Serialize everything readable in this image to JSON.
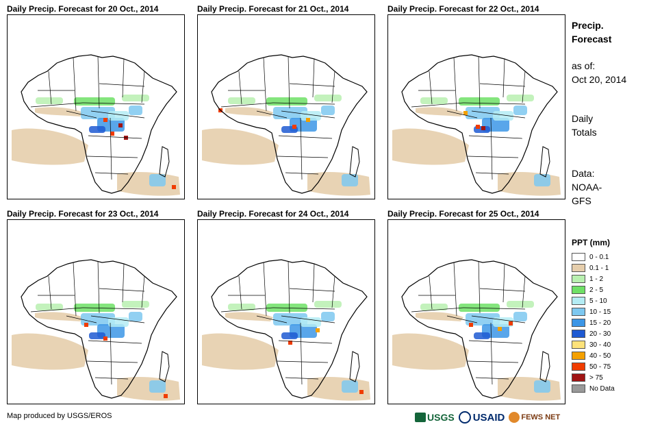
{
  "panels": [
    {
      "title": "Daily Precip. Forecast for 20 Oct., 2014"
    },
    {
      "title": "Daily Precip. Forecast for 21 Oct., 2014"
    },
    {
      "title": "Daily Precip. Forecast for 22 Oct., 2014"
    },
    {
      "title": "Daily Precip. Forecast for 23 Oct., 2014"
    },
    {
      "title": "Daily Precip. Forecast for 24 Oct., 2014"
    },
    {
      "title": "Daily Precip. Forecast for 25 Oct., 2014"
    }
  ],
  "side": {
    "heading_line1": "Precip.",
    "heading_line2": "Forecast",
    "asof_line1": "as of:",
    "asof_line2": "Oct 20, 2014",
    "totals_line1": "Daily",
    "totals_line2": "Totals",
    "data_line1": "Data:",
    "data_line2": "NOAA-",
    "data_line3": "GFS"
  },
  "legend": {
    "title": "PPT (mm)",
    "items": [
      {
        "label": "0 - 0.1",
        "color": "#ffffff"
      },
      {
        "label": "0.1 - 1",
        "color": "#e6ceac"
      },
      {
        "label": "1 - 2",
        "color": "#b9f0b0"
      },
      {
        "label": "2 - 5",
        "color": "#6fe066"
      },
      {
        "label": "5 - 10",
        "color": "#b4ecf4"
      },
      {
        "label": "10 - 15",
        "color": "#7ec8f0"
      },
      {
        "label": "15 - 20",
        "color": "#3c96e6"
      },
      {
        "label": "20 - 30",
        "color": "#1e5ad2"
      },
      {
        "label": "30 - 40",
        "color": "#fde27a"
      },
      {
        "label": "40 - 50",
        "color": "#f4a000"
      },
      {
        "label": "50 - 75",
        "color": "#f03c00"
      },
      {
        "label": "> 75",
        "color": "#a01414"
      },
      {
        "label": "No Data",
        "color": "#999999"
      }
    ]
  },
  "credit": "Map produced by USGS/EROS",
  "logos": {
    "usgs": "USGS",
    "usaid": "USAID",
    "fews": "FEWS NET"
  }
}
